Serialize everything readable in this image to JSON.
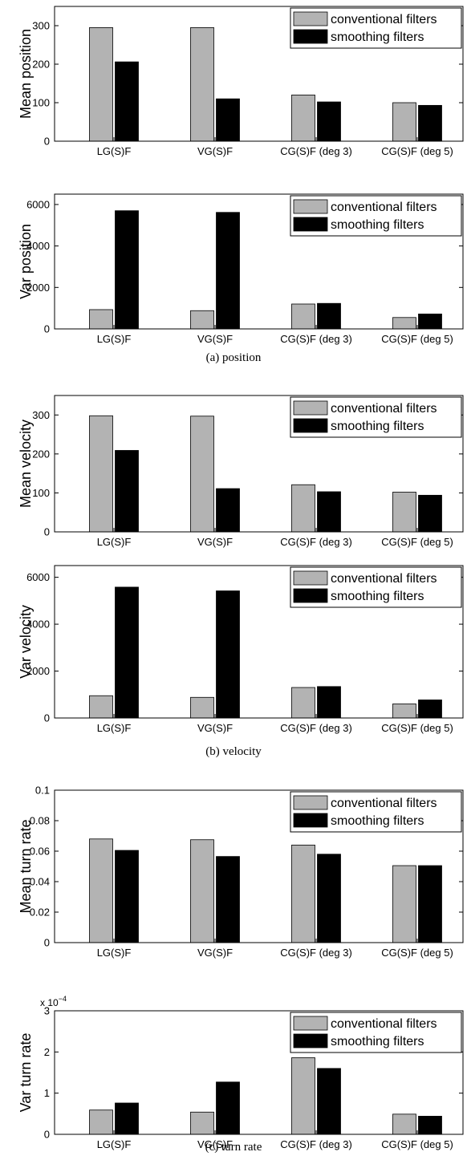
{
  "figure": {
    "captions": [
      "(a) position",
      "(b) velocity",
      "(c) turn rate"
    ]
  },
  "chart_data": [
    {
      "type": "bar",
      "categories": [
        "LG(S)F",
        "VG(S)F",
        "CG(S)F (deg 3)",
        "CG(S)F (deg 5)"
      ],
      "series": [
        {
          "name": "conventional filters",
          "values": [
            295,
            295,
            120,
            100
          ]
        },
        {
          "name": "smoothing filters",
          "values": [
            206,
            110,
            102,
            93
          ]
        }
      ],
      "ylabel": "Mean position",
      "ylim": [
        0,
        350
      ],
      "yticks": [
        0,
        100,
        200,
        300
      ],
      "ytick_labels": [
        "0",
        "100",
        "200",
        "300"
      ],
      "scale_label": "",
      "legend": "top-right",
      "colors": [
        "#b3b3b3",
        "#000000"
      ]
    },
    {
      "type": "bar",
      "categories": [
        "LG(S)F",
        "VG(S)F",
        "CG(S)F (deg 3)",
        "CG(S)F (deg 5)"
      ],
      "series": [
        {
          "name": "conventional filters",
          "values": [
            930,
            880,
            1200,
            550
          ]
        },
        {
          "name": "smoothing filters",
          "values": [
            5700,
            5620,
            1230,
            720
          ]
        }
      ],
      "ylabel": "Var position",
      "ylim": [
        0,
        6500
      ],
      "yticks": [
        0,
        2000,
        4000,
        6000
      ],
      "ytick_labels": [
        "0",
        "2000",
        "4000",
        "6000"
      ],
      "scale_label": "",
      "legend": "top-right",
      "colors": [
        "#b3b3b3",
        "#000000"
      ]
    },
    {
      "type": "bar",
      "categories": [
        "LG(S)F",
        "VG(S)F",
        "CG(S)F (deg 3)",
        "CG(S)F (deg 5)"
      ],
      "series": [
        {
          "name": "conventional filters",
          "values": [
            298,
            297,
            121,
            102
          ]
        },
        {
          "name": "smoothing filters",
          "values": [
            209,
            111,
            103,
            94
          ]
        }
      ],
      "ylabel": "Mean velocity",
      "ylim": [
        0,
        350
      ],
      "yticks": [
        0,
        100,
        200,
        300
      ],
      "ytick_labels": [
        "0",
        "100",
        "200",
        "300"
      ],
      "scale_label": "",
      "legend": "top-right",
      "colors": [
        "#b3b3b3",
        "#000000"
      ]
    },
    {
      "type": "bar",
      "categories": [
        "LG(S)F",
        "VG(S)F",
        "CG(S)F (deg 3)",
        "CG(S)F (deg 5)"
      ],
      "series": [
        {
          "name": "conventional filters",
          "values": [
            950,
            880,
            1300,
            600
          ]
        },
        {
          "name": "smoothing filters",
          "values": [
            5580,
            5420,
            1340,
            770
          ]
        }
      ],
      "ylabel": "Var velocity",
      "ylim": [
        0,
        6500
      ],
      "yticks": [
        0,
        2000,
        4000,
        6000
      ],
      "ytick_labels": [
        "0",
        "2000",
        "4000",
        "6000"
      ],
      "scale_label": "",
      "legend": "top-right",
      "colors": [
        "#b3b3b3",
        "#000000"
      ]
    },
    {
      "type": "bar",
      "categories": [
        "LG(S)F",
        "VG(S)F",
        "CG(S)F (deg 3)",
        "CG(S)F (deg 5)"
      ],
      "series": [
        {
          "name": "conventional filters",
          "values": [
            0.068,
            0.0675,
            0.064,
            0.0505
          ]
        },
        {
          "name": "smoothing filters",
          "values": [
            0.0605,
            0.0565,
            0.058,
            0.0505
          ]
        }
      ],
      "ylabel": "Mean turn rate",
      "ylim": [
        0,
        0.1
      ],
      "yticks": [
        0,
        0.02,
        0.04,
        0.06,
        0.08,
        0.1
      ],
      "ytick_labels": [
        "0",
        "0.02",
        "0.04",
        "0.06",
        "0.08",
        "0.1"
      ],
      "scale_label": "",
      "legend": "top-right",
      "colors": [
        "#b3b3b3",
        "#000000"
      ]
    },
    {
      "type": "bar",
      "categories": [
        "LG(S)F",
        "VG(S)F",
        "CG(S)F (deg 3)",
        "CG(S)F (deg 5)"
      ],
      "series": [
        {
          "name": "conventional filters",
          "values": [
            5.9e-05,
            5.4e-05,
            0.000186,
            4.9e-05
          ]
        },
        {
          "name": "smoothing filters",
          "values": [
            7.6e-05,
            0.000127,
            0.00016,
            4.4e-05
          ]
        }
      ],
      "ylabel": "Var turn rate",
      "ylim": [
        0,
        0.0003
      ],
      "yticks": [
        0,
        0.0001,
        0.0002,
        0.0003
      ],
      "ytick_labels": [
        "0",
        "1",
        "2",
        "3"
      ],
      "scale_label": "x 10",
      "scale_exponent": "−4",
      "legend": "top-right",
      "colors": [
        "#b3b3b3",
        "#000000"
      ]
    }
  ]
}
